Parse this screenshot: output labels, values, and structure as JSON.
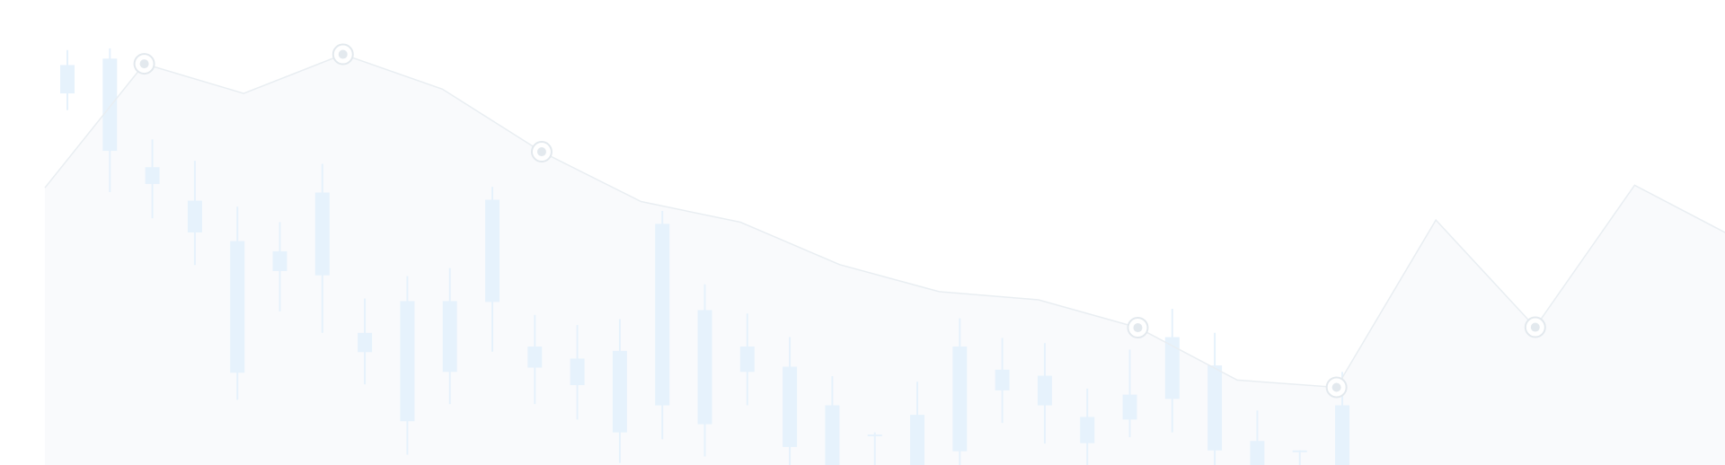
{
  "colors": {
    "candle": "#e6f2fc",
    "line": "#e9eef2",
    "marker": "#e3e9ee",
    "area": "#f7f9fb"
  },
  "chart_data": [
    {
      "type": "candlestick",
      "grid": false,
      "axes_visible": false,
      "ylim": [
        0,
        100
      ],
      "candles": [
        {
          "open": 93.2,
          "close": 86.6,
          "high": 96.7,
          "low": 82.7
        },
        {
          "open": 94.7,
          "close": 73.2,
          "high": 97.1,
          "low": 63.6
        },
        {
          "open": 69.4,
          "close": 65.5,
          "high": 75.9,
          "low": 57.5
        },
        {
          "open": 61.6,
          "close": 54.2,
          "high": 70.9,
          "low": 46.6
        },
        {
          "open": 52.2,
          "close": 21.5,
          "high": 60.2,
          "low": 15.2
        },
        {
          "open": 49.8,
          "close": 45.2,
          "high": 56.6,
          "low": 35.8
        },
        {
          "open": 63.5,
          "close": 44.2,
          "high": 70.2,
          "low": 30.8
        },
        {
          "open": 30.8,
          "close": 26.3,
          "high": 38.8,
          "low": 18.8
        },
        {
          "open": 38.2,
          "close": 10.2,
          "high": 44.0,
          "low": 2.4
        },
        {
          "open": 38.2,
          "close": 21.7,
          "high": 45.9,
          "low": 14.2
        },
        {
          "open": 61.8,
          "close": 38.0,
          "high": 64.8,
          "low": 26.4
        },
        {
          "open": 27.6,
          "close": 22.7,
          "high": 35.0,
          "low": 14.2
        },
        {
          "open": 24.8,
          "close": 18.6,
          "high": 32.6,
          "low": 10.6
        },
        {
          "open": 26.6,
          "close": 7.6,
          "high": 34.0,
          "low": 0.5
        },
        {
          "open": 56.2,
          "close": 13.9,
          "high": 59.2,
          "low": 6.0
        },
        {
          "open": 36.1,
          "close": 9.5,
          "high": 42.1,
          "low": 2.0
        },
        {
          "open": 27.6,
          "close": 21.7,
          "high": 35.3,
          "low": 13.9
        },
        {
          "open": 22.9,
          "close": 4.2,
          "high": 29.8,
          "low": 0.0
        },
        {
          "open": 13.9,
          "close": 0.0,
          "high": 20.7,
          "low": 0.0
        },
        {
          "open": 7.1,
          "close": 7.1,
          "high": 7.6,
          "low": 0.0
        },
        {
          "open": 11.7,
          "close": 0.0,
          "high": 19.4,
          "low": 0.0
        },
        {
          "open": 27.6,
          "close": 3.2,
          "high": 34.2,
          "low": 0.0
        },
        {
          "open": 22.2,
          "close": 17.4,
          "high": 29.6,
          "low": 9.8
        },
        {
          "open": 20.8,
          "close": 13.9,
          "high": 28.4,
          "low": 5.0
        },
        {
          "open": 11.2,
          "close": 5.1,
          "high": 17.8,
          "low": 0.0
        },
        {
          "open": 16.4,
          "close": 10.6,
          "high": 26.9,
          "low": 6.5
        },
        {
          "open": 29.8,
          "close": 15.4,
          "high": 36.4,
          "low": 7.6
        },
        {
          "open": 23.2,
          "close": 3.4,
          "high": 30.8,
          "low": 0.0
        },
        {
          "open": 5.6,
          "close": 0.0,
          "high": 12.7,
          "low": 0.0
        },
        {
          "open": 3.4,
          "close": 3.4,
          "high": 3.4,
          "low": 0.0
        },
        {
          "open": 13.9,
          "close": 0.0,
          "high": 21.7,
          "low": 0.0
        }
      ]
    },
    {
      "type": "line",
      "grid": false,
      "axes_visible": false,
      "ylim": [
        0,
        100
      ],
      "x": [
        0,
        1,
        2,
        3,
        4,
        5,
        6,
        7,
        8,
        9,
        10,
        11,
        12,
        13,
        14,
        15,
        16,
        17
      ],
      "series": [
        {
          "values": [
            64.6,
            93.5,
            86.6,
            95.7,
            87.6,
            73.0,
            61.4,
            56.6,
            46.7,
            40.4,
            38.5,
            32.0,
            19.8,
            18.1,
            57.1,
            32.1,
            65.2,
            53.1
          ]
        }
      ],
      "markers": [
        1,
        3,
        5,
        11,
        13,
        15
      ]
    }
  ]
}
